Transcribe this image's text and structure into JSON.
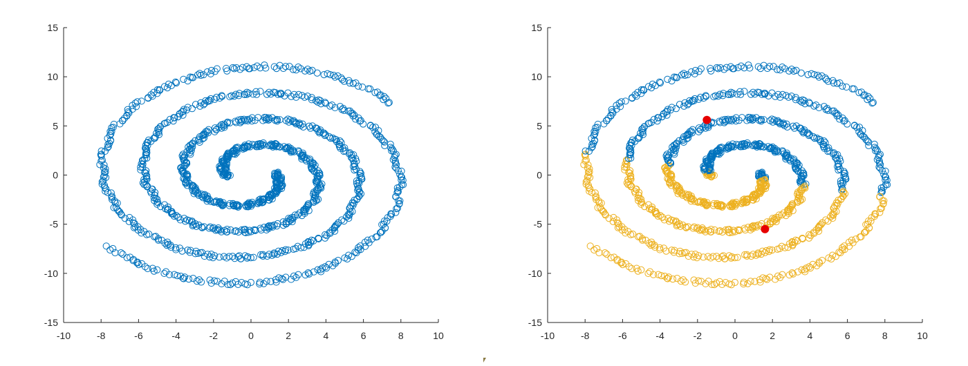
{
  "colors": {
    "cluster_1": "#0072bd",
    "cluster_2": "#edb120",
    "centroid": "#e60000",
    "axis": "#262626"
  },
  "chart_data": [
    {
      "type": "scatter",
      "title": "",
      "xlabel": "",
      "ylabel": "",
      "xlim": [
        -10,
        10
      ],
      "ylim": [
        -15,
        15
      ],
      "xticks": [
        -10,
        -8,
        -6,
        -4,
        -2,
        0,
        2,
        4,
        6,
        8,
        10
      ],
      "yticks": [
        -15,
        -10,
        -5,
        0,
        5,
        10,
        15
      ],
      "xtick_labels": [
        "-10",
        "-8",
        "-6",
        "-4",
        "-2",
        "0",
        "2",
        "4",
        "6",
        "8",
        "10"
      ],
      "ytick_labels": [
        "-15",
        "-10",
        "-5",
        "0",
        "5",
        "10",
        "15"
      ],
      "grid": false,
      "marker": "open-circle",
      "series": [
        {
          "color": "#0072bd",
          "spirals": [
            {
              "start": [
                0.3,
                1.8
              ],
              "end": [
                5.8,
                10.1
              ],
              "turns": "outward, clockwise"
            },
            {
              "start": [
                -0.3,
                -1.8
              ],
              "end": [
                -5.8,
                -9.8
              ],
              "turns": "outward, clockwise"
            }
          ]
        }
      ]
    },
    {
      "type": "scatter",
      "title": "",
      "xlabel": "",
      "ylabel": "",
      "xlim": [
        -10,
        10
      ],
      "ylim": [
        -15,
        15
      ],
      "xticks": [
        -10,
        -8,
        -6,
        -4,
        -2,
        0,
        2,
        4,
        6,
        8,
        10
      ],
      "yticks": [
        -15,
        -10,
        -5,
        0,
        5,
        10,
        15
      ],
      "xtick_labels": [
        "-10",
        "-8",
        "-6",
        "-4",
        "-2",
        "0",
        "2",
        "4",
        "6",
        "8",
        "10"
      ],
      "ytick_labels": [
        "-15",
        "-10",
        "-5",
        "0",
        "5",
        "10",
        "15"
      ],
      "grid": false,
      "marker": "open-circle",
      "series": [
        {
          "color": "#0072bd",
          "rule": "points with y > -x*0.28 (upper cluster)"
        },
        {
          "color": "#edb120",
          "rule": "points with y <= -x*0.28 (lower cluster)"
        },
        {
          "color": "#e60000",
          "marker": "filled-circle",
          "points": [
            [
              -1.5,
              5.6
            ],
            [
              1.6,
              -5.5
            ]
          ]
        }
      ]
    }
  ]
}
